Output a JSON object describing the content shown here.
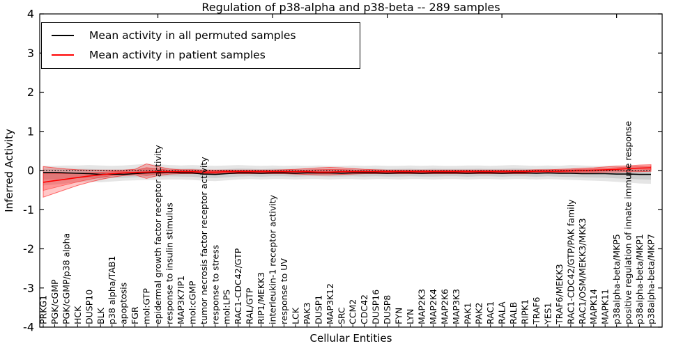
{
  "figure": {
    "title": "Regulation of p38-alpha and p38-beta -- 289 samples",
    "xlabel": "Cellular Entities",
    "ylabel": "Inferred Activity"
  },
  "chart_data": {
    "type": "line",
    "title": "Regulation of p38-alpha and p38-beta -- 289 samples",
    "xlabel": "Cellular Entities",
    "ylabel": "Inferred Activity",
    "ylim": [
      -4,
      4
    ],
    "yticks": [
      4,
      3,
      2,
      1,
      0,
      -1,
      -2,
      -3,
      -4
    ],
    "grid": false,
    "legend_position": "upper left",
    "reference_line_y": 0,
    "top_axis_tick_category_indices": [
      10,
      20,
      30,
      40,
      50
    ],
    "categories": [
      "PRKG1",
      "PGK/cGMP",
      "PGK/cGMP/p38 alpha",
      "HCK",
      "DUSP10",
      "BLK",
      "p38 alpha/TAB1",
      "apoptosis",
      "FGR",
      "mol:GTP",
      "epidermal growth factor receptor activity",
      "response to insulin stimulus",
      "MAP3K7IP1",
      "mol:cGMP",
      "tumor necrosis factor receptor activity",
      "response to stress",
      "mol:LPS",
      "RAC1-CDC42/GTP",
      "RAL/GTP",
      "RIP1/MEKK3",
      "interleukin-1 receptor activity",
      "response to UV",
      "LCK",
      "PAK3",
      "DUSP1",
      "MAP3K12",
      "SRC",
      "CCM2",
      "CDC42",
      "DUSP16",
      "DUSP8",
      "FYN",
      "LYN",
      "MAP2K3",
      "MAP2K4",
      "MAP2K6",
      "MAP3K3",
      "PAK1",
      "PAK2",
      "RAC1",
      "RALA",
      "RALB",
      "RIPK1",
      "TRAF6",
      "YES1",
      "TRAF6/MEKK3",
      "RAC1-CDC42/GTP/PAK family",
      "RAC1/OSM/MEKK3/MKK3",
      "MAPK14",
      "MAPK11",
      "p38alpha-beta/MKP5",
      "positive regulation of innate immune response",
      "p38alpha-beta/MKP1",
      "p38alpha-beta/MKP7"
    ],
    "series": [
      {
        "name": "Mean activity in all permuted samples",
        "color": "#000000",
        "band_color": "rgba(0,0,0,0.10)",
        "values": [
          -0.05,
          -0.05,
          -0.06,
          -0.07,
          -0.08,
          -0.1,
          -0.09,
          -0.1,
          -0.08,
          -0.06,
          -0.05,
          -0.05,
          -0.06,
          -0.06,
          -0.09,
          -0.1,
          -0.08,
          -0.06,
          -0.06,
          -0.07,
          -0.06,
          -0.06,
          -0.07,
          -0.06,
          -0.06,
          -0.06,
          -0.07,
          -0.06,
          -0.06,
          -0.06,
          -0.07,
          -0.06,
          -0.06,
          -0.07,
          -0.06,
          -0.06,
          -0.06,
          -0.07,
          -0.06,
          -0.06,
          -0.07,
          -0.06,
          -0.06,
          -0.07,
          -0.06,
          -0.07,
          -0.07,
          -0.08,
          -0.08,
          -0.08,
          -0.09,
          -0.09,
          -0.1,
          -0.1
        ],
        "band_upper": [
          0.12,
          0.12,
          0.13,
          0.13,
          0.14,
          0.13,
          0.12,
          0.13,
          0.15,
          0.17,
          0.16,
          0.14,
          0.13,
          0.14,
          0.13,
          0.12,
          0.13,
          0.14,
          0.13,
          0.12,
          0.13,
          0.12,
          0.13,
          0.12,
          0.13,
          0.12,
          0.12,
          0.13,
          0.12,
          0.13,
          0.12,
          0.12,
          0.13,
          0.12,
          0.13,
          0.12,
          0.12,
          0.13,
          0.13,
          0.12,
          0.13,
          0.14,
          0.13,
          0.12,
          0.13,
          0.12,
          0.14,
          0.13,
          0.12,
          0.12,
          0.13,
          0.12,
          0.12,
          0.12
        ],
        "band_lower": [
          -0.38,
          -0.36,
          -0.33,
          -0.3,
          -0.28,
          -0.3,
          -0.28,
          -0.26,
          -0.25,
          -0.24,
          -0.24,
          -0.23,
          -0.23,
          -0.24,
          -0.26,
          -0.27,
          -0.25,
          -0.23,
          -0.22,
          -0.23,
          -0.22,
          -0.22,
          -0.23,
          -0.22,
          -0.22,
          -0.23,
          -0.22,
          -0.22,
          -0.23,
          -0.22,
          -0.22,
          -0.23,
          -0.22,
          -0.22,
          -0.23,
          -0.22,
          -0.22,
          -0.23,
          -0.22,
          -0.22,
          -0.23,
          -0.22,
          -0.22,
          -0.23,
          -0.22,
          -0.23,
          -0.24,
          -0.25,
          -0.26,
          -0.27,
          -0.29,
          -0.31,
          -0.33,
          -0.34
        ]
      },
      {
        "name": "Mean activity in patient samples",
        "color": "#ff0000",
        "band_color": "rgba(255,0,0,0.22)",
        "values": [
          -0.3,
          -0.26,
          -0.22,
          -0.18,
          -0.14,
          -0.11,
          -0.08,
          -0.06,
          -0.05,
          -0.04,
          -0.03,
          -0.03,
          -0.03,
          -0.03,
          -0.04,
          -0.04,
          -0.03,
          -0.03,
          -0.03,
          -0.03,
          -0.03,
          -0.03,
          -0.03,
          -0.03,
          -0.04,
          -0.04,
          -0.03,
          -0.03,
          -0.03,
          -0.03,
          -0.03,
          -0.03,
          -0.03,
          -0.03,
          -0.03,
          -0.03,
          -0.03,
          -0.03,
          -0.03,
          -0.03,
          -0.03,
          -0.03,
          -0.03,
          -0.02,
          -0.02,
          -0.02,
          -0.01,
          0.0,
          0.01,
          0.02,
          0.03,
          0.05,
          0.06,
          0.07
        ],
        "band_upper": [
          0.1,
          0.07,
          0.04,
          0.02,
          0.01,
          0.01,
          0.01,
          0.01,
          0.03,
          0.17,
          0.1,
          0.04,
          0.02,
          0.02,
          0.01,
          0.01,
          0.01,
          0.01,
          0.01,
          0.01,
          0.01,
          0.02,
          0.03,
          0.05,
          0.07,
          0.08,
          0.07,
          0.05,
          0.03,
          0.02,
          0.01,
          0.01,
          0.01,
          0.01,
          0.01,
          0.01,
          0.01,
          0.01,
          0.01,
          0.01,
          0.01,
          0.01,
          0.01,
          0.02,
          0.02,
          0.03,
          0.04,
          0.06,
          0.07,
          0.09,
          0.11,
          0.12,
          0.14,
          0.15
        ],
        "band_lower": [
          -0.68,
          -0.58,
          -0.48,
          -0.38,
          -0.3,
          -0.23,
          -0.17,
          -0.13,
          -0.11,
          -0.2,
          -0.13,
          -0.09,
          -0.08,
          -0.08,
          -0.08,
          -0.08,
          -0.08,
          -0.08,
          -0.08,
          -0.08,
          -0.08,
          -0.08,
          -0.09,
          -0.1,
          -0.11,
          -0.11,
          -0.1,
          -0.09,
          -0.08,
          -0.08,
          -0.08,
          -0.08,
          -0.08,
          -0.08,
          -0.08,
          -0.08,
          -0.08,
          -0.08,
          -0.08,
          -0.08,
          -0.08,
          -0.08,
          -0.08,
          -0.07,
          -0.07,
          -0.06,
          -0.06,
          -0.05,
          -0.05,
          -0.04,
          -0.04,
          -0.03,
          -0.03,
          -0.02
        ]
      }
    ]
  }
}
